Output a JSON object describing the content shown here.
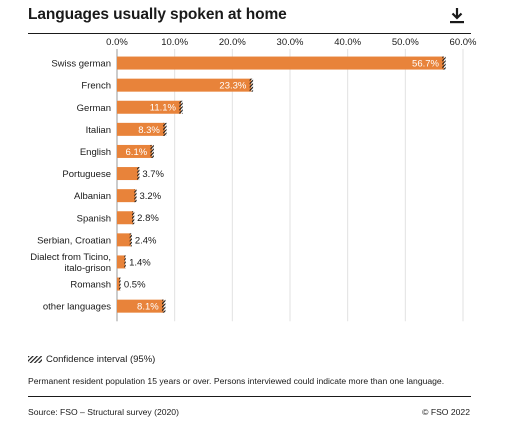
{
  "title": "Languages usually spoken at home",
  "download_icon": "download-icon",
  "legend": {
    "ci_label": "Confidence interval (95%)"
  },
  "note": "Permanent resident population 15 years or over. Persons interviewed could indicate more than one language.",
  "source": "Source: FSO – Structural survey (2020)",
  "copyright": "© FSO 2022",
  "colors": {
    "bar": "#e8833a",
    "grid": "#e2e2e2",
    "text": "#1a1a1a"
  },
  "chart_data": {
    "type": "bar",
    "orientation": "horizontal",
    "title": "Languages usually spoken at home",
    "xlim": [
      0,
      60
    ],
    "ticks": [
      "0.0%",
      "10.0%",
      "20.0%",
      "30.0%",
      "40.0%",
      "50.0%",
      "60.0%"
    ],
    "tick_values": [
      0,
      10,
      20,
      30,
      40,
      50,
      60
    ],
    "grid": true,
    "categories": [
      [
        "Swiss german"
      ],
      [
        "French"
      ],
      [
        "German"
      ],
      [
        "Italian"
      ],
      [
        "English"
      ],
      [
        "Portuguese"
      ],
      [
        "Albanian"
      ],
      [
        "Spanish"
      ],
      [
        "Serbian, Croatian"
      ],
      [
        "Dialect from Ticino,",
        "italo-grison"
      ],
      [
        "Romansh"
      ],
      [
        "other languages"
      ]
    ],
    "values": [
      56.7,
      23.3,
      11.1,
      8.3,
      6.1,
      3.7,
      3.2,
      2.8,
      2.4,
      1.4,
      0.5,
      8.1
    ],
    "labels": [
      "56.7%",
      "23.3%",
      "11.1%",
      "8.3%",
      "6.1%",
      "3.7%",
      "3.2%",
      "2.8%",
      "2.4%",
      "1.4%",
      "0.5%",
      "8.1%"
    ],
    "label_inside": [
      true,
      true,
      true,
      true,
      true,
      false,
      false,
      false,
      false,
      false,
      false,
      true
    ],
    "ci_half_width": [
      0.3,
      0.3,
      0.3,
      0.3,
      0.3,
      0.2,
      0.2,
      0.2,
      0.2,
      0.1,
      0.1,
      0.3
    ]
  }
}
